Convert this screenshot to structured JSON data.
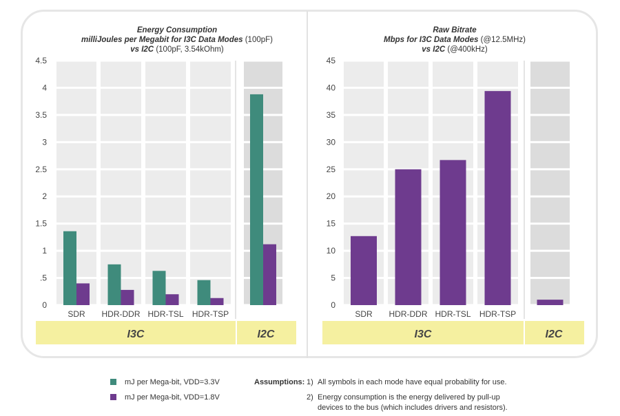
{
  "chart_data": [
    {
      "type": "bar",
      "title_bold": "Energy Consumption",
      "subtitle_bold": "milliJoules per Megabit for I3C Data Modes",
      "subtitle_plain": "(100pF)",
      "line3_bold": "vs I2C",
      "line3_plain": "(100pF, 3.54kOhm)",
      "categories": [
        "SDR",
        "HDR-DDR",
        "HDR-TSL",
        "HDR-TSP",
        ""
      ],
      "groups": [
        "I3C",
        "I2C"
      ],
      "yticks": [
        "0",
        ".5",
        "1",
        "1.5",
        "2",
        "2.5",
        "3",
        "3.5",
        "4",
        "4.5"
      ],
      "ylim": [
        0,
        4.5
      ],
      "series": [
        {
          "name": "mJ per Mega-bit, VDD=3.3V",
          "color": "#3f8b7c",
          "values": [
            1.36,
            0.75,
            0.63,
            0.46,
            3.88
          ]
        },
        {
          "name": "mJ per Mega-bit, VDD=1.8V",
          "color": "#6e3b8e",
          "values": [
            0.4,
            0.28,
            0.2,
            0.13,
            1.12
          ]
        }
      ]
    },
    {
      "type": "bar",
      "title_bold": "Raw Bitrate",
      "subtitle_bold": "Mbps for I3C Data Modes",
      "subtitle_plain": "(@12.5MHz)",
      "line3_bold": "vs I2C",
      "line3_plain": "(@400kHz)",
      "categories": [
        "SDR",
        "HDR-DDR",
        "HDR-TSL",
        "HDR-TSP",
        ""
      ],
      "groups": [
        "I3C",
        "I2C"
      ],
      "yticks": [
        "0",
        "5",
        "10",
        "15",
        "20",
        "25",
        "30",
        "35",
        "40",
        "45"
      ],
      "ylim": [
        0,
        45
      ],
      "series": [
        {
          "name": "Mbps",
          "color": "#6e3b8e",
          "values": [
            12.7,
            25.0,
            26.7,
            39.4,
            1.0
          ]
        }
      ]
    }
  ],
  "legend": [
    {
      "label": "mJ per Mega-bit, VDD=3.3V",
      "color": "#3f8b7c"
    },
    {
      "label": "mJ per Mega-bit, VDD=1.8V",
      "color": "#6e3b8e"
    }
  ],
  "assumptions": {
    "label": "Assumptions:",
    "items": [
      {
        "num": "1)",
        "text": "All symbols in each mode have equal probability for use."
      },
      {
        "num": "2)",
        "text": "Energy consumption is the energy delivered by pull-up",
        "text2": "devices to the bus (which includes drivers and resistors)."
      }
    ]
  }
}
